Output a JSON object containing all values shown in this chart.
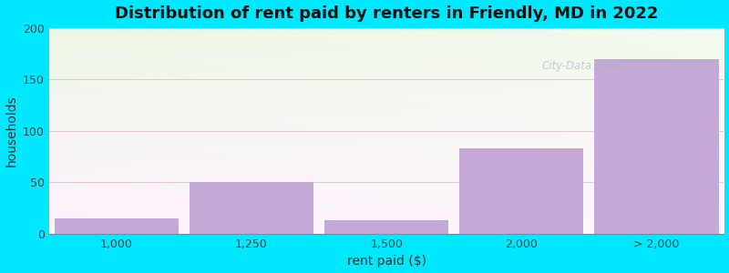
{
  "categories": [
    "1,000",
    "1,250",
    "1,500",
    "2,000",
    "> 2,000"
  ],
  "values": [
    15,
    50,
    13,
    83,
    170
  ],
  "bar_color": "#c4a8d8",
  "bar_edgecolor": "#c4a8d8",
  "title": "Distribution of rent paid by renters in Friendly, MD in 2022",
  "xlabel": "rent paid ($)",
  "ylabel": "households",
  "ylim": [
    0,
    200
  ],
  "yticks": [
    0,
    50,
    100,
    150,
    200
  ],
  "background_outer": "#00e8ff",
  "title_fontsize": 13,
  "axis_label_fontsize": 10,
  "tick_fontsize": 9,
  "watermark_text": "City-Data.com",
  "watermark_color": "#a0b0c0",
  "watermark_alpha": 0.55,
  "bar_positions": [
    0,
    1,
    2,
    3,
    4
  ],
  "bar_width": 0.92
}
